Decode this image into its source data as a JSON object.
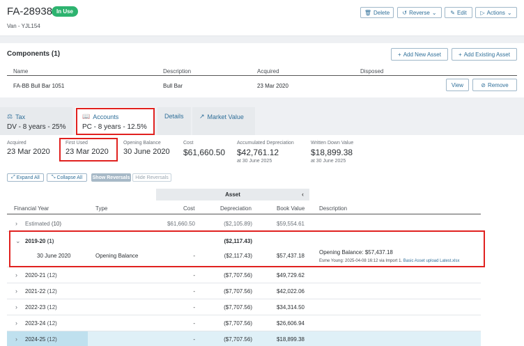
{
  "header": {
    "asset_id": "FA-28938",
    "status_badge": "In Use",
    "subtitle": "Van - YJL154",
    "buttons": {
      "delete": "Delete",
      "reverse": "Reverse",
      "edit": "Edit",
      "actions": "Actions"
    }
  },
  "components": {
    "title": "Components (1)",
    "add_new": "Add New Asset",
    "add_existing": "Add Existing Asset",
    "columns": {
      "name": "Name",
      "description": "Description",
      "acquired": "Acquired",
      "disposed": "Disposed"
    },
    "row": {
      "name": "FA-BB Bull Bar 1051",
      "description": "Bull Bar",
      "acquired": "23 Mar 2020",
      "disposed": "",
      "view": "View",
      "remove": "Remove"
    }
  },
  "tabs": {
    "tax": {
      "label": "Tax",
      "sub": "DV - 8 years - 25%"
    },
    "accounts": {
      "label": "Accounts",
      "sub": "PC - 8 years - 12.5%"
    },
    "details": {
      "label": "Details"
    },
    "market": {
      "label": "Market Value"
    }
  },
  "summary": {
    "acquired": {
      "label": "Acquired",
      "value": "23 Mar 2020"
    },
    "first_used": {
      "label": "First Used",
      "value": "23 Mar 2020"
    },
    "opening_balance": {
      "label": "Opening Balance",
      "value": "30 June 2020"
    },
    "cost": {
      "label": "Cost",
      "value": "$61,660.50"
    },
    "accum_dep": {
      "label": "Accumulated Depreciation",
      "value": "$42,761.12",
      "note": "at 30 June 2025"
    },
    "wdv": {
      "label": "Written Down Value",
      "value": "$18,899.38",
      "note": "at 30 June 2025"
    }
  },
  "toolbar": {
    "expand_all": "Expand All",
    "collapse_all": "Collapse All",
    "show_reversals": "Show Reversals",
    "hide_reversals": "Hide Reversals"
  },
  "table": {
    "group_header": "Asset",
    "columns": {
      "fy": "Financial Year",
      "type": "Type",
      "cost": "Cost",
      "depreciation": "Depreciation",
      "book_value": "Book Value",
      "description": "Description"
    },
    "estimated": {
      "label": "Estimated",
      "count": "(10)",
      "cost": "$61,660.50",
      "depreciation": "($2,105.89)",
      "book_value": "$59,554.61"
    },
    "expanded": {
      "label": "2019-20",
      "count": "(1)",
      "depreciation": "($2,117.43)",
      "detail": {
        "date": "30 June 2020",
        "type": "Opening Balance",
        "cost": "-",
        "depreciation": "($2,117.43)",
        "book_value": "$57,437.18",
        "desc_main": "Opening Balance: $57,437.18",
        "desc_meta": "Esme Young: 2025-04-08 16:12 via Import 1.",
        "desc_link": "Basic Asset upload Latest.xlsx"
      }
    },
    "years": [
      {
        "label": "2020-21",
        "count": "(12)",
        "cost": "-",
        "depreciation": "($7,707.56)",
        "book_value": "$49,729.62"
      },
      {
        "label": "2021-22",
        "count": "(12)",
        "cost": "-",
        "depreciation": "($7,707.56)",
        "book_value": "$42,022.06"
      },
      {
        "label": "2022-23",
        "count": "(12)",
        "cost": "-",
        "depreciation": "($7,707.56)",
        "book_value": "$34,314.50"
      },
      {
        "label": "2023-24",
        "count": "(12)",
        "cost": "-",
        "depreciation": "($7,707.56)",
        "book_value": "$26,606.94"
      },
      {
        "label": "2024-25",
        "count": "(12)",
        "cost": "-",
        "depreciation": "($7,707.56)",
        "book_value": "$18,899.38"
      }
    ]
  },
  "colors": {
    "accent": "#2f6f99",
    "badge": "#2db36f",
    "highlight": "#e0211f",
    "current_year": "#bfe0ee"
  }
}
